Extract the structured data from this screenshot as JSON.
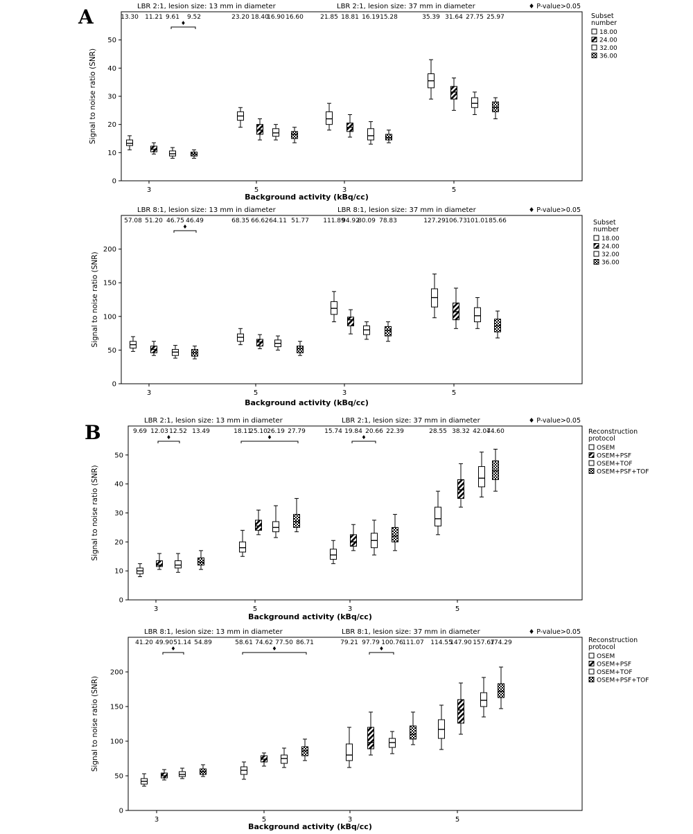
{
  "panel_letters": [
    "A",
    "B"
  ],
  "significance_marker": "♦",
  "chart_data": [
    {
      "type": "box",
      "panel": "A",
      "xlabel": "Background activity (kBq/cc)",
      "ylabel": "Signal to noise ratio (SNR)",
      "ylim": [
        0,
        60
      ],
      "yticks": [
        0,
        10,
        20,
        30,
        40,
        50
      ],
      "grid": false,
      "legend": {
        "title": "Subset\nnumber",
        "placement": "right-top",
        "entries": [
          "18.00",
          "24.00",
          "32.00",
          "36.00"
        ]
      },
      "legend_corner": "♦ P-value>0.05",
      "group_titles": [
        {
          "text": "LBR 2:1, lesion size: 13 mm in diameter",
          "span": [
            0,
            1
          ]
        },
        {
          "text": "LBR 2:1, lesion size: 37 mm in diameter",
          "span": [
            2,
            3
          ]
        }
      ],
      "groups": [
        {
          "label": "3",
          "means": [
            "13.30",
            "11.21",
            "9.61",
            "9.52"
          ],
          "boxes": [
            [
              11,
              12.5,
              13.3,
              14.5,
              16
            ],
            [
              9.5,
              10.3,
              11.2,
              12.3,
              13.5
            ],
            [
              8,
              8.8,
              9.6,
              10.6,
              11.8
            ],
            [
              8,
              8.8,
              9.5,
              10.2,
              11
            ]
          ]
        },
        {
          "label": "5",
          "means": [
            "23.20",
            "18.40",
            "16.90",
            "16.60"
          ],
          "boxes": [
            [
              19,
              21.5,
              23,
              24.5,
              26
            ],
            [
              14.5,
              16.5,
              18,
              20,
              22
            ],
            [
              14.5,
              15.8,
              17,
              18.5,
              20
            ],
            [
              13.5,
              15,
              16.5,
              17.5,
              19
            ]
          ]
        },
        {
          "label": "3",
          "means": [
            "21.85",
            "18.81",
            "16.19",
            "15.28"
          ],
          "boxes": [
            [
              18,
              20,
              22,
              24.5,
              27.5
            ],
            [
              15.5,
              17.5,
              19,
              20.5,
              23.5
            ],
            [
              13,
              14.5,
              16,
              18.5,
              21
            ],
            [
              13.5,
              14.5,
              15.3,
              16.5,
              18
            ]
          ]
        },
        {
          "label": "5",
          "means": [
            "35.39",
            "31.64",
            "27.75",
            "25.97"
          ],
          "boxes": [
            [
              29,
              33,
              35.5,
              38,
              43
            ],
            [
              25,
              29,
              31.5,
              33.5,
              36.5
            ],
            [
              23.5,
              26,
              27.5,
              29.5,
              31.5
            ],
            [
              22,
              24.5,
              26,
              28,
              29.5
            ]
          ]
        }
      ],
      "brackets": [
        {
          "group": 0,
          "from": 2,
          "to": 3
        }
      ]
    },
    {
      "type": "box",
      "panel": "A",
      "xlabel": "Background activity (kBq/cc)",
      "ylabel": "Signal to noise ratio (SNR)",
      "ylim": [
        0,
        250
      ],
      "yticks": [
        0,
        50,
        100,
        150,
        200
      ],
      "grid": false,
      "legend": {
        "title": "Subset\nnumber",
        "placement": "right-top",
        "entries": [
          "18.00",
          "24.00",
          "32.00",
          "36.00"
        ]
      },
      "legend_corner": "♦ P-value>0.05",
      "group_titles": [
        {
          "text": "LBR 8:1, lesion size: 13 mm in diameter",
          "span": [
            0,
            1
          ]
        },
        {
          "text": "LBR 8:1, lesion size: 37 mm in diameter",
          "span": [
            2,
            3
          ]
        }
      ],
      "groups": [
        {
          "label": "3",
          "means": [
            "57.08",
            "51.20",
            "46.75",
            "46.49"
          ],
          "boxes": [
            [
              48,
              53,
              58,
              63,
              70
            ],
            [
              42,
              46,
              51,
              56,
              63
            ],
            [
              38,
              42,
              47,
              51,
              57
            ],
            [
              37,
              41,
              46,
              51,
              56
            ]
          ]
        },
        {
          "label": "5",
          "means": [
            "68.35",
            "66.62",
            "64.11",
            "51.77"
          ],
          "boxes": [
            [
              58,
              63,
              69,
              74,
              82
            ],
            [
              52,
              56,
              62,
              66,
              73
            ],
            [
              50,
              55,
              60,
              65,
              71
            ],
            [
              42,
              46,
              52,
              56,
              63
            ]
          ]
        },
        {
          "label": "3",
          "means": [
            "111.89",
            "94.92",
            "80.09",
            "78.83"
          ],
          "boxes": [
            [
              92,
              103,
              112,
              122,
              137
            ],
            [
              74,
              86,
              95,
              99,
              110
            ],
            [
              66,
              73,
              80,
              86,
              92
            ],
            [
              63,
              71,
              79,
              85,
              92
            ]
          ]
        },
        {
          "label": "5",
          "means": [
            "127.29",
            "106.73",
            "101.01",
            "85.66"
          ],
          "boxes": [
            [
              98,
              114,
              128,
              141,
              163
            ],
            [
              82,
              95,
              107,
              120,
              142
            ],
            [
              82,
              92,
              101,
              113,
              128
            ],
            [
              68,
              77,
              86,
              96,
              108
            ]
          ]
        }
      ],
      "brackets": [
        {
          "group": 0,
          "from": 2,
          "to": 3
        }
      ]
    },
    {
      "type": "box",
      "panel": "B",
      "xlabel": "Background activity (kBq/cc)",
      "ylabel": "Signal to noise ratio (SNR)",
      "ylim": [
        0,
        60
      ],
      "yticks": [
        0,
        10,
        20,
        30,
        40,
        50
      ],
      "grid": false,
      "legend": {
        "title": "Reconstruction\nprotocol",
        "placement": "right-top",
        "entries": [
          "OSEM",
          "OSEM+PSF",
          "OSEM+TOF",
          "OSEM+PSF+TOF"
        ]
      },
      "legend_corner": "♦ P-value>0.05",
      "group_titles": [
        {
          "text": "LBR 2:1, lesion size: 13 mm in diameter",
          "span": [
            0,
            1
          ]
        },
        {
          "text": "LBR 2:1, lesion size: 37 mm in diameter",
          "span": [
            2,
            3
          ]
        }
      ],
      "groups": [
        {
          "label": "3",
          "means": [
            "9.69",
            "12.03",
            "12.52",
            "13.49"
          ],
          "boxes": [
            [
              8,
              9,
              10,
              11,
              12.5
            ],
            [
              10.5,
              11.5,
              12,
              13.5,
              16
            ],
            [
              9.5,
              11,
              12,
              13.5,
              16
            ],
            [
              10.5,
              12,
              13,
              14.5,
              17
            ]
          ]
        },
        {
          "label": "5",
          "means": [
            "18.11",
            "25.10",
            "26.19",
            "27.79"
          ],
          "boxes": [
            [
              15,
              16.5,
              18,
              20,
              24
            ],
            [
              22.5,
              24,
              25.5,
              27.5,
              31
            ],
            [
              21.5,
              23.5,
              25,
              27,
              32.5
            ],
            [
              23.5,
              25,
              27,
              29.5,
              35
            ]
          ]
        },
        {
          "label": "3",
          "means": [
            "15.74",
            "19.84",
            "20.66",
            "22.39"
          ],
          "boxes": [
            [
              12.5,
              14,
              15.5,
              17.5,
              20.5
            ],
            [
              17,
              18.5,
              20,
              22.5,
              26
            ],
            [
              15.5,
              18,
              20.5,
              23,
              27.5
            ],
            [
              17,
              20,
              22,
              25,
              29.5
            ]
          ]
        },
        {
          "label": "5",
          "means": [
            "28.55",
            "38.32",
            "42.07",
            "44.60"
          ],
          "boxes": [
            [
              22.5,
              25.5,
              28,
              32,
              37.5
            ],
            [
              32,
              35,
              38,
              41.5,
              47
            ],
            [
              35.5,
              39,
              42,
              46,
              51
            ],
            [
              37.5,
              41.5,
              44.5,
              48,
              52
            ]
          ]
        }
      ],
      "brackets": [
        {
          "group": 0,
          "from": 1,
          "to": 2
        },
        {
          "group": 1,
          "from": 0,
          "to": 3
        },
        {
          "group": 2,
          "from": 1,
          "to": 2
        }
      ]
    },
    {
      "type": "box",
      "panel": "B",
      "xlabel": "Background activity (kBq/cc)",
      "ylabel": "Signal to noise ratio (SNR)",
      "ylim": [
        0,
        250
      ],
      "yticks": [
        0,
        50,
        100,
        150,
        200
      ],
      "grid": false,
      "legend": {
        "title": "Reconstruction\nprotocol",
        "placement": "right-top",
        "entries": [
          "OSEM",
          "OSEM+PSF",
          "OSEM+TOF",
          "OSEM+PSF+TOF"
        ]
      },
      "legend_corner": "♦ P-value>0.05",
      "group_titles": [
        {
          "text": "LBR 8:1, lesion size: 13 mm in diameter",
          "span": [
            0,
            1
          ]
        },
        {
          "text": "LBR 8:1, lesion size: 37 mm in diameter",
          "span": [
            2,
            3
          ]
        }
      ],
      "groups": [
        {
          "label": "3",
          "means": [
            "41.20",
            "49.90",
            "51.14",
            "54.89"
          ],
          "boxes": [
            [
              35,
              38,
              42,
              46,
              53
            ],
            [
              44,
              47,
              50,
              54,
              59
            ],
            [
              46,
              49,
              52,
              56,
              61
            ],
            [
              49,
              52,
              56,
              60,
              66
            ]
          ]
        },
        {
          "label": "5",
          "means": [
            "58.61",
            "74.62",
            "77.50",
            "86.71"
          ],
          "boxes": [
            [
              45,
              52,
              58,
              63,
              70
            ],
            [
              64,
              70,
              74,
              79,
              83
            ],
            [
              62,
              68,
              75,
              80,
              90
            ],
            [
              72,
              79,
              86,
              92,
              103
            ]
          ]
        },
        {
          "label": "3",
          "means": [
            "79.21",
            "97.79",
            "100.76",
            "111.07"
          ],
          "boxes": [
            [
              62,
              72,
              80,
              96,
              120
            ],
            [
              80,
              89,
              98,
              120,
              142
            ],
            [
              82,
              91,
              98,
              104,
              114
            ],
            [
              95,
              103,
              110,
              122,
              142
            ]
          ]
        },
        {
          "label": "5",
          "means": [
            "114.55",
            "147.90",
            "157.67",
            "174.29"
          ],
          "boxes": [
            [
              88,
              104,
              117,
              131,
              152
            ],
            [
              110,
              126,
              145,
              160,
              184
            ],
            [
              135,
              150,
              159,
              170,
              192
            ],
            [
              147,
              163,
              172,
              183,
              207
            ]
          ]
        }
      ],
      "brackets": [
        {
          "group": 0,
          "from": 1,
          "to": 2
        },
        {
          "group": 1,
          "from": 0,
          "to": 3
        },
        {
          "group": 2,
          "from": 1,
          "to": 2
        }
      ]
    }
  ],
  "colors": {
    "axis": "#000000",
    "box_fill": "#ffffff"
  },
  "fill_patterns": [
    "blank",
    "diagonal-stripes",
    "blank",
    "crosshatch"
  ]
}
